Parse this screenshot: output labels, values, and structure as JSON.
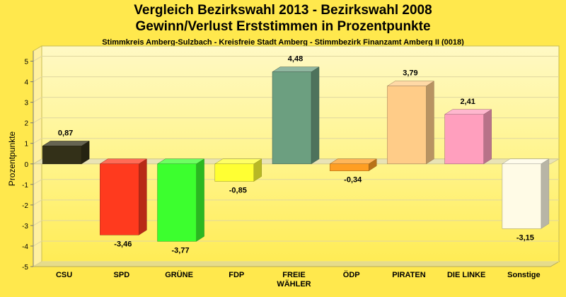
{
  "chart_data": {
    "type": "bar",
    "title": "Vergleich Bezirkswahl 2013 - Bezirkswahl 2008",
    "subtitle": "Gewinn/Verlust Erststimmen in Prozentpunkte",
    "caption": "Stimmkreis Amberg-Sulzbach - Kreisfreie Stadt Amberg - Stimmbezirk Finanzamt Amberg II (0018)",
    "ylabel": "Prozentpunkte",
    "xlabel": "",
    "ylim": [
      -5,
      5.5
    ],
    "yticks": [
      5,
      4,
      3,
      2,
      1,
      0,
      -1,
      -2,
      -3,
      -4,
      -5
    ],
    "grid": true,
    "categories": [
      "CSU",
      "SPD",
      "GRÜNE",
      "FDP",
      "FREIE WÄHLER",
      "ÖDP",
      "PIRATEN",
      "DIE LINKE",
      "Sonstige"
    ],
    "category_lines": [
      [
        "CSU"
      ],
      [
        "SPD"
      ],
      [
        "GRÜNE"
      ],
      [
        "FDP"
      ],
      [
        "FREIE",
        "WÄHLER"
      ],
      [
        "ÖDP"
      ],
      [
        "PIRATEN"
      ],
      [
        "DIE LINKE"
      ],
      [
        "Sonstige"
      ]
    ],
    "values": [
      0.87,
      -3.46,
      -3.77,
      -0.85,
      4.48,
      -0.34,
      3.79,
      2.41,
      -3.15
    ],
    "value_labels": [
      "0,87",
      "-3,46",
      "-3,77",
      "-0,85",
      "4,48",
      "-0,34",
      "3,79",
      "2,41",
      "-3,15"
    ],
    "colors": [
      "#333018",
      "#ff3a1e",
      "#3cff2e",
      "#ffff33",
      "#6c9f80",
      "#ff9e22",
      "#ffcc88",
      "#ff9fbe",
      "#fffbe6"
    ]
  }
}
